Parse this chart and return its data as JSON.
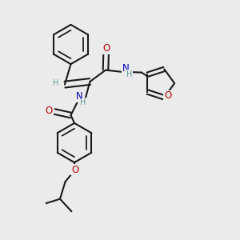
{
  "background_color": "#ebebeb",
  "bond_color": "#1a1a1a",
  "atom_colors": {
    "N": "#0000cc",
    "O": "#cc0000",
    "H": "#5f9ea0",
    "C": "#1a1a1a"
  },
  "figsize": [
    3.0,
    3.0
  ],
  "dpi": 100
}
